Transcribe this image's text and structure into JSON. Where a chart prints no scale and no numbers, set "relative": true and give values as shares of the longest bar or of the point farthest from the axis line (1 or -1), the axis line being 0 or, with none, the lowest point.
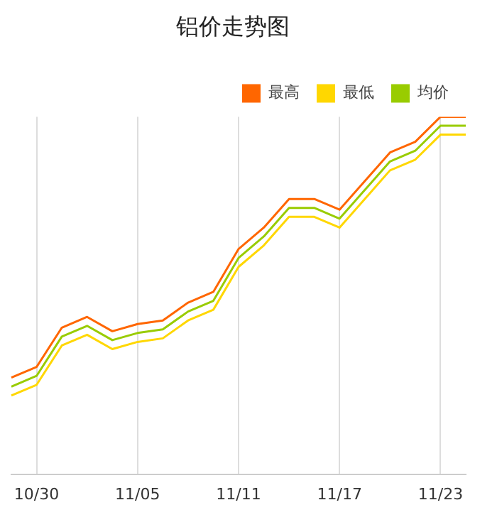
{
  "chart_data": {
    "type": "line",
    "title": "铝价走势图",
    "relative": true,
    "grid": "x",
    "legend": "top right",
    "marker": "none",
    "line_style": "solid",
    "categories": [
      null,
      "10/30",
      null,
      null,
      null,
      "11/05",
      null,
      null,
      null,
      "11/11",
      null,
      null,
      null,
      "11/17",
      null,
      null,
      null,
      "11/23",
      null
    ],
    "series": [
      {
        "name": "最高",
        "color": "#ff6600",
        "values": [
          0.27,
          0.3,
          0.41,
          0.44,
          0.4,
          0.42,
          0.43,
          0.48,
          0.51,
          0.63,
          0.69,
          0.77,
          0.77,
          0.74,
          0.82,
          0.9,
          0.93,
          1,
          1
        ]
      },
      {
        "name": "最低",
        "color": "#ffd700",
        "values": [
          0.22,
          0.25,
          0.36,
          0.39,
          0.35,
          0.37,
          0.38,
          0.43,
          0.46,
          0.58,
          0.64,
          0.72,
          0.72,
          0.69,
          0.77,
          0.85,
          0.88,
          0.95,
          0.95
        ]
      },
      {
        "name": "均价",
        "color": "#99cc00",
        "values": [
          0.245,
          0.275,
          0.385,
          0.415,
          0.375,
          0.395,
          0.405,
          0.455,
          0.485,
          0.605,
          0.665,
          0.745,
          0.745,
          0.715,
          0.795,
          0.875,
          0.905,
          0.975,
          0.975
        ]
      }
    ]
  }
}
